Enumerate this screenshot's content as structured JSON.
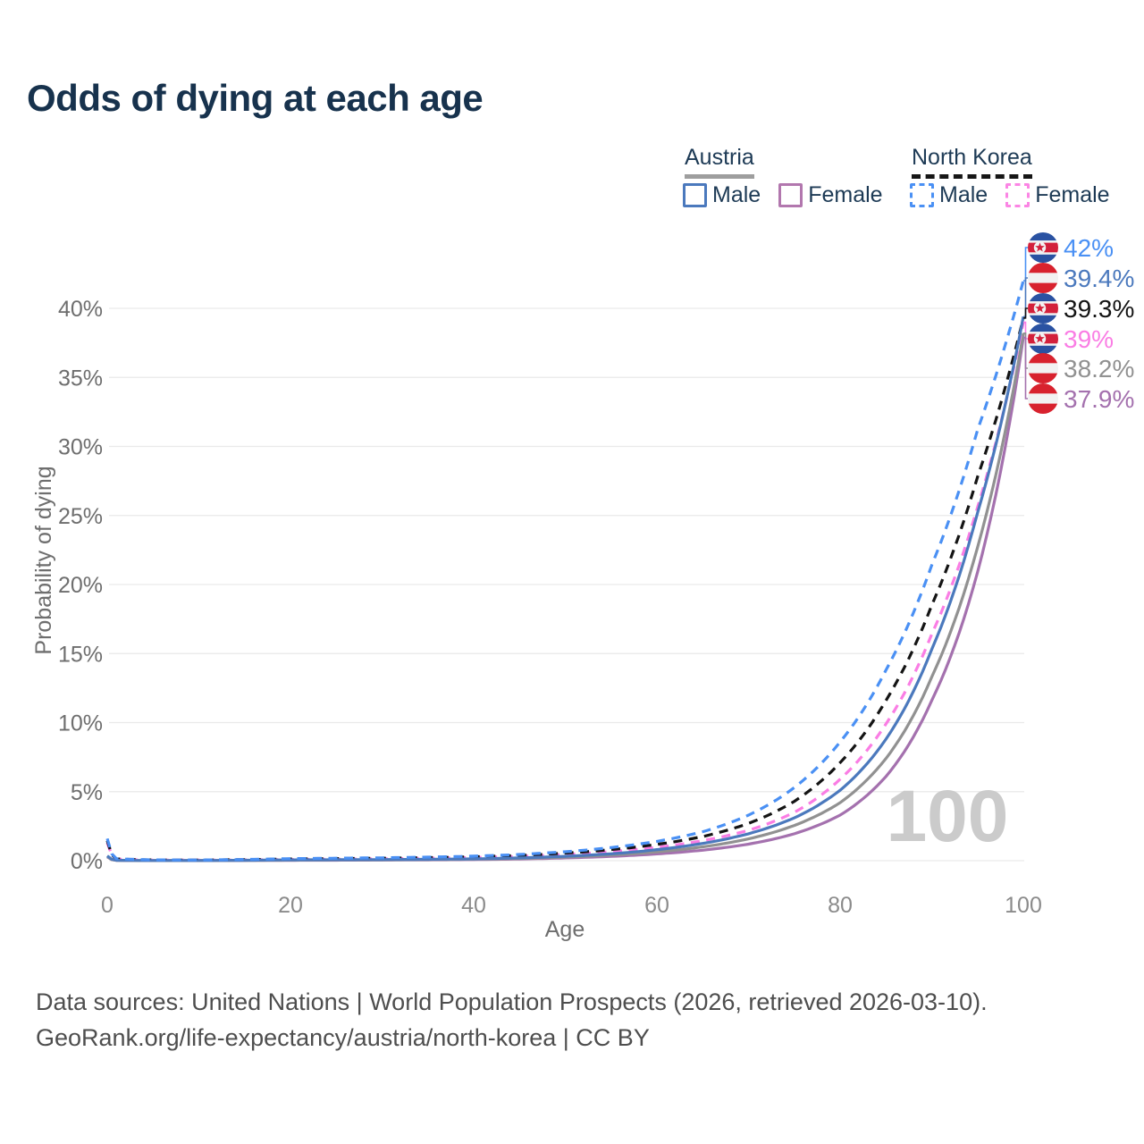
{
  "title": "Odds of dying at each age",
  "legend": {
    "groups": [
      {
        "name": "Austria",
        "line_style": "solid",
        "line_color": "#9e9e9e",
        "items": [
          {
            "label": "Male",
            "color": "#4b79bd",
            "dashed": false
          },
          {
            "label": "Female",
            "color": "#b277ae",
            "dashed": false
          }
        ]
      },
      {
        "name": "North Korea",
        "line_style": "dashed",
        "line_color": "#161616",
        "items": [
          {
            "label": "Male",
            "color": "#4a90f4",
            "dashed": true
          },
          {
            "label": "Female",
            "color": "#fb85e4",
            "dashed": true
          }
        ]
      }
    ]
  },
  "chart_data": {
    "type": "line",
    "title": "Odds of dying at each age",
    "xlabel": "Age",
    "ylabel": "Probability of dying",
    "watermark": "100",
    "xlim": [
      0,
      100
    ],
    "ylim": [
      0,
      42.5
    ],
    "x_ticks": [
      0,
      20,
      40,
      60,
      80,
      100
    ],
    "y_ticks": [
      0,
      5,
      10,
      15,
      20,
      25,
      30,
      35,
      40
    ],
    "y_tick_suffix": "%",
    "grid": "horizontal",
    "legend_position": "top-right",
    "ages": [
      0,
      1,
      5,
      10,
      15,
      20,
      25,
      30,
      35,
      40,
      45,
      50,
      55,
      60,
      65,
      70,
      75,
      80,
      85,
      90,
      95,
      100
    ],
    "series": [
      {
        "name": "North Korea Male",
        "country": "North Korea",
        "sex": "male",
        "color": "#4a90f4",
        "dash": true,
        "flag": "north-korea",
        "end_label": "42%",
        "values": [
          1.6,
          0.15,
          0.06,
          0.05,
          0.09,
          0.15,
          0.18,
          0.21,
          0.26,
          0.33,
          0.45,
          0.65,
          0.95,
          1.4,
          2.1,
          3.3,
          5.3,
          8.6,
          13.8,
          21.4,
          31.2,
          42
        ]
      },
      {
        "name": "Austria Male",
        "country": "Austria",
        "sex": "male",
        "color": "#4b79bd",
        "dash": false,
        "flag": "austria",
        "end_label": "39.4%",
        "values": [
          0.35,
          0.03,
          0.01,
          0.012,
          0.03,
          0.06,
          0.07,
          0.08,
          0.1,
          0.13,
          0.2,
          0.32,
          0.5,
          0.8,
          1.25,
          1.95,
          3.1,
          5.1,
          8.8,
          15.3,
          25.2,
          39.4
        ]
      },
      {
        "name": "North Korea All",
        "country": "North Korea",
        "sex": "all",
        "color": "#141414",
        "dash": true,
        "flag": "north-korea",
        "end_label": "39.3%",
        "values": [
          1.45,
          0.13,
          0.05,
          0.045,
          0.08,
          0.12,
          0.15,
          0.18,
          0.22,
          0.28,
          0.38,
          0.55,
          0.8,
          1.18,
          1.75,
          2.7,
          4.3,
          7.1,
          11.6,
          18.5,
          27.8,
          39.3
        ]
      },
      {
        "name": "North Korea Female",
        "country": "North Korea",
        "sex": "female",
        "color": "#fa7de4",
        "dash": true,
        "flag": "north-korea",
        "end_label": "39%",
        "values": [
          1.3,
          0.12,
          0.045,
          0.04,
          0.06,
          0.09,
          0.11,
          0.14,
          0.18,
          0.23,
          0.31,
          0.45,
          0.66,
          0.97,
          1.45,
          2.2,
          3.5,
          5.9,
          9.9,
          16.4,
          25.6,
          39
        ]
      },
      {
        "name": "Austria All",
        "country": "Austria",
        "sex": "all",
        "color": "#919191",
        "dash": false,
        "flag": "austria",
        "end_label": "38.2%",
        "values": [
          0.3,
          0.025,
          0.009,
          0.01,
          0.022,
          0.04,
          0.05,
          0.06,
          0.08,
          0.11,
          0.16,
          0.26,
          0.41,
          0.64,
          1.0,
          1.58,
          2.55,
          4.2,
          7.4,
          13.3,
          22.7,
          38.2
        ]
      },
      {
        "name": "Austria Female",
        "country": "Austria",
        "sex": "female",
        "color": "#a471ae",
        "dash": false,
        "flag": "austria",
        "end_label": "37.9%",
        "values": [
          0.28,
          0.02,
          0.008,
          0.009,
          0.016,
          0.028,
          0.035,
          0.045,
          0.06,
          0.08,
          0.12,
          0.2,
          0.31,
          0.49,
          0.76,
          1.2,
          1.95,
          3.3,
          6.1,
          11.6,
          20.9,
          37.9
        ]
      }
    ],
    "flag_colors": {
      "austria_red": "#d8222e",
      "flag_white": "#f2f2f2",
      "nk_blue": "#2a52a2",
      "nk_red": "#d3203b"
    }
  },
  "footer": {
    "line1": "Data sources: United Nations | World Population Prospects (2026, retrieved 2026-03-10).",
    "line2": "GeoRank.org/life-expectancy/austria/north-korea | CC BY"
  }
}
